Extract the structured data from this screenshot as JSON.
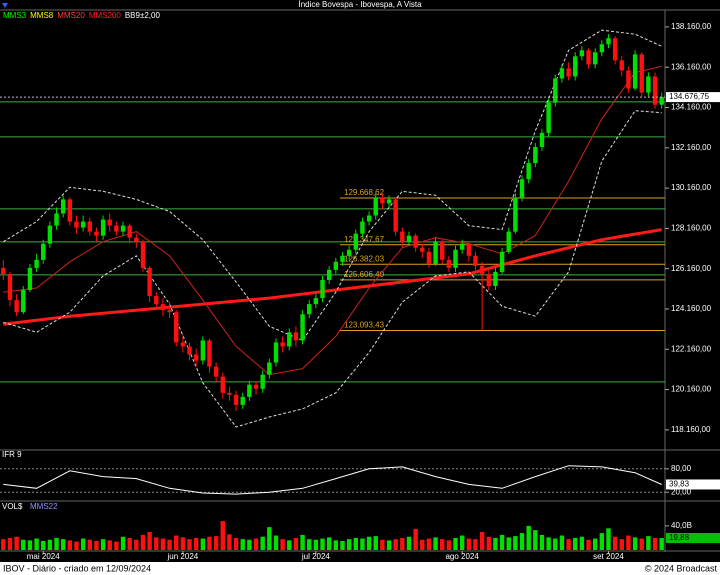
{
  "chart_data": [
    {
      "type": "candlestick",
      "title": "Índice Bovespa - Ibovespa, A Vista",
      "legend": [
        {
          "label": "MMS3",
          "color": "#00ff00"
        },
        {
          "label": "MMS8",
          "color": "#ffff00"
        },
        {
          "label": "MMS20",
          "color": "#ff4040"
        },
        {
          "label": "MMS200",
          "color": "#ff2020"
        },
        {
          "label": "BB9±2,00",
          "color": "#ffffff"
        }
      ],
      "up_color": "#00e000",
      "down_color": "#ff1010",
      "xlim": [
        -0.5,
        99.5
      ],
      "xticks": [
        {
          "value": 6,
          "label": "mai 2024"
        },
        {
          "value": 27,
          "label": "jun 2024"
        },
        {
          "value": 47,
          "label": "jul 2024"
        },
        {
          "value": 69,
          "label": "ago 2024"
        },
        {
          "value": 91,
          "label": "set 2024"
        }
      ],
      "ylim": [
        117160,
        139000
      ],
      "yticks": [
        {
          "value": 138160,
          "label": "138.160,00"
        },
        {
          "value": 136160,
          "label": "136.160,00"
        },
        {
          "value": 134160,
          "label": "134.160,00"
        },
        {
          "value": 132160,
          "label": "132.160,00"
        },
        {
          "value": 130160,
          "label": "130.160,00"
        },
        {
          "value": 128160,
          "label": "128.160,00"
        },
        {
          "value": 126160,
          "label": "126.160,00"
        },
        {
          "value": 124160,
          "label": "124.160,00"
        },
        {
          "value": 122160,
          "label": "122.160,00"
        },
        {
          "value": 120160,
          "label": "120.160,00"
        },
        {
          "value": 118160,
          "label": "118.160,00"
        }
      ],
      "open": [
        126200,
        125900,
        124600,
        124000,
        125100,
        126200,
        126600,
        127400,
        128300,
        128900,
        129600,
        128500,
        128200,
        128500,
        128000,
        127800,
        128600,
        128300,
        128000,
        128300,
        127700,
        127500,
        126200,
        124800,
        124400,
        124100,
        124000,
        122500,
        122300,
        121900,
        121600,
        122600,
        121300,
        120800,
        120000,
        119900,
        119400,
        119800,
        120400,
        120200,
        120900,
        121500,
        122500,
        122300,
        123000,
        122600,
        123900,
        124400,
        124700,
        125600,
        126100,
        126500,
        126800,
        127100,
        127900,
        128500,
        128800,
        129700,
        129400,
        129600,
        128000,
        127500,
        127800,
        127200,
        127000,
        126400,
        127500,
        126600,
        126200,
        127100,
        127400,
        126800,
        126300,
        125900,
        125300,
        126000,
        127000,
        128000,
        129700,
        130600,
        131400,
        132200,
        132900,
        134400,
        135600,
        136100,
        135700,
        136700,
        137000,
        136300,
        136900,
        137300,
        137600,
        136500,
        136000,
        135100,
        136800,
        134900,
        135700,
        134300
      ],
      "high": [
        126600,
        126000,
        124900,
        125300,
        126400,
        126900,
        127600,
        128500,
        129200,
        129800,
        129700,
        128800,
        128800,
        128700,
        128200,
        128800,
        128900,
        128500,
        128500,
        128400,
        127900,
        127600,
        126300,
        125000,
        124700,
        124500,
        124100,
        122900,
        122500,
        122200,
        122800,
        122700,
        121500,
        121000,
        120300,
        120100,
        120000,
        120600,
        120600,
        121100,
        121700,
        122700,
        122800,
        123200,
        123300,
        124100,
        124600,
        124900,
        125800,
        126300,
        126700,
        127000,
        127300,
        128100,
        128700,
        129000,
        129900,
        129900,
        129800,
        129700,
        128200,
        128000,
        127900,
        127400,
        127200,
        127700,
        127600,
        126800,
        127300,
        127600,
        127500,
        127000,
        126500,
        126100,
        126200,
        127200,
        128200,
        129900,
        130800,
        131600,
        132400,
        133100,
        134600,
        135800,
        136300,
        136400,
        136900,
        137200,
        137100,
        137100,
        137500,
        137800,
        137700,
        136700,
        136200,
        137000,
        136900,
        135900,
        135900,
        134900
      ],
      "low": [
        125600,
        124300,
        123800,
        123900,
        125000,
        126000,
        126400,
        127200,
        128100,
        128700,
        128300,
        127900,
        128000,
        127800,
        127500,
        127600,
        128000,
        127800,
        127800,
        127400,
        127200,
        126000,
        124500,
        124100,
        123800,
        123700,
        122300,
        122000,
        121600,
        121300,
        121400,
        121000,
        120500,
        119700,
        119600,
        119100,
        119200,
        119600,
        119900,
        120000,
        120700,
        121300,
        122000,
        122100,
        122300,
        122400,
        123700,
        124200,
        124500,
        125400,
        125900,
        126300,
        126600,
        126900,
        127700,
        128300,
        128600,
        129100,
        129200,
        127800,
        127200,
        127300,
        127000,
        126700,
        126200,
        126300,
        126400,
        126000,
        126000,
        126900,
        126500,
        126100,
        123100,
        125100,
        125100,
        125900,
        126900,
        127900,
        129500,
        130400,
        131200,
        132000,
        132700,
        134200,
        135400,
        135500,
        135500,
        136500,
        136100,
        136100,
        136700,
        137100,
        136300,
        135700,
        134900,
        135000,
        134700,
        134700,
        134100,
        134100
      ],
      "close": [
        125900,
        124600,
        124000,
        125100,
        126200,
        126600,
        127400,
        128300,
        128900,
        129600,
        128500,
        128200,
        128500,
        128000,
        127800,
        128600,
        128300,
        128000,
        128300,
        127700,
        127500,
        126200,
        124800,
        124400,
        124100,
        124000,
        122500,
        122300,
        121900,
        121600,
        122600,
        121300,
        120800,
        120000,
        119900,
        119400,
        119800,
        120400,
        120200,
        120900,
        121500,
        122500,
        122300,
        123000,
        122600,
        123900,
        124400,
        124700,
        125600,
        126100,
        126500,
        126800,
        127100,
        127900,
        128500,
        128800,
        129700,
        129400,
        129600,
        128000,
        127500,
        127800,
        127200,
        127000,
        126400,
        127500,
        126600,
        126200,
        127100,
        127400,
        126800,
        126300,
        125900,
        125300,
        126000,
        127000,
        128000,
        129700,
        130600,
        131400,
        132200,
        132900,
        134400,
        135600,
        136100,
        135700,
        136700,
        137000,
        136300,
        136900,
        137300,
        137600,
        136500,
        136000,
        135100,
        136800,
        134900,
        135700,
        134300,
        134676.75
      ],
      "last_price": {
        "value": 134676.75,
        "label": "134.676,75"
      },
      "level_color": "#3cb043",
      "levels": [
        134440,
        132700,
        129130,
        127490,
        125850,
        120540
      ],
      "labeled_level_color": "#e0a020",
      "labeled_levels": [
        {
          "value": 129668.62,
          "label": "129.668,62"
        },
        {
          "value": 127347.67,
          "label": "127.347,67"
        },
        {
          "value": 126382.03,
          "label": "126.382,03"
        },
        {
          "value": 125606.4,
          "label": "125.606,40"
        },
        {
          "value": 123093.43,
          "label": "123.093,43"
        }
      ],
      "series": [
        {
          "name": "MMS200",
          "color": "#ff1a1a",
          "width": 3,
          "x": [
            0,
            10,
            20,
            30,
            40,
            50,
            60,
            70,
            80,
            90,
            99
          ],
          "values": [
            123400,
            123800,
            124100,
            124400,
            124700,
            125100,
            125500,
            125900,
            126800,
            127600,
            128100
          ]
        },
        {
          "name": "MMS20",
          "color": "#d02020",
          "width": 1,
          "x": [
            0,
            5,
            10,
            15,
            20,
            25,
            30,
            35,
            40,
            45,
            50,
            55,
            60,
            65,
            70,
            75,
            80,
            85,
            90,
            95,
            99
          ],
          "values": [
            125000,
            125200,
            126500,
            127500,
            128000,
            126800,
            124600,
            122300,
            120900,
            121200,
            122800,
            125200,
            127200,
            127700,
            127400,
            126900,
            127800,
            130500,
            133600,
            135900,
            136200
          ]
        },
        {
          "name": "BB9±2,00",
          "color": "#dddddd",
          "width": 1,
          "dash": true,
          "x": [
            0,
            5,
            10,
            15,
            20,
            25,
            30,
            35,
            40,
            45,
            50,
            55,
            60,
            65,
            70,
            75,
            80,
            85,
            90,
            95,
            99
          ],
          "values": [
            127500,
            128500,
            130200,
            130000,
            129600,
            129000,
            127600,
            125500,
            123300,
            122600,
            125000,
            128000,
            130000,
            129800,
            128300,
            128100,
            133000,
            137000,
            138000,
            137800,
            137200
          ]
        },
        {
          "name": "BB9±2,00",
          "color": "#dddddd",
          "width": 1,
          "dash": true,
          "x": [
            0,
            5,
            10,
            15,
            20,
            25,
            30,
            35,
            40,
            45,
            50,
            55,
            60,
            65,
            70,
            75,
            80,
            85,
            90,
            95,
            99
          ],
          "values": [
            123500,
            123000,
            124000,
            125800,
            126800,
            124400,
            120500,
            118300,
            118800,
            119200,
            120000,
            122000,
            124500,
            125800,
            126000,
            124300,
            123800,
            126000,
            131500,
            134000,
            133900
          ]
        }
      ]
    },
    {
      "type": "line",
      "title": "IFR 9",
      "xlim": [
        -0.5,
        99.5
      ],
      "ylim": [
        0,
        100
      ],
      "yticks": [
        {
          "value": 80,
          "label": "80,00"
        },
        {
          "value": 20,
          "label": "20,00"
        }
      ],
      "series": [
        {
          "color": "#ffffff",
          "width": 1,
          "x": [
            0,
            5,
            10,
            15,
            20,
            25,
            30,
            35,
            40,
            45,
            50,
            55,
            60,
            65,
            70,
            75,
            80,
            85,
            90,
            95,
            99
          ],
          "values": [
            40,
            30,
            75,
            60,
            55,
            30,
            18,
            15,
            20,
            30,
            55,
            80,
            85,
            60,
            40,
            30,
            60,
            88,
            85,
            70,
            39.83
          ]
        }
      ],
      "last_value": {
        "value": 39.83,
        "label": "39,83"
      }
    },
    {
      "type": "bar",
      "title": "VOL$",
      "legend": [
        {
          "label": "MMS22",
          "color": "#9090ff"
        }
      ],
      "xlim": [
        -0.5,
        99.5
      ],
      "ylim": [
        0,
        78
      ],
      "yticks": [
        {
          "value": 40,
          "label": "40,0B"
        }
      ],
      "values": [
        18,
        20,
        22,
        17,
        16,
        19,
        15,
        17,
        20,
        18,
        16,
        14,
        19,
        17,
        15,
        18,
        16,
        14,
        22,
        20,
        17,
        25,
        30,
        21,
        19,
        17,
        24,
        21,
        18,
        20,
        19,
        22,
        23,
        48,
        26,
        20,
        18,
        17,
        19,
        22,
        38,
        24,
        18,
        16,
        20,
        25,
        18,
        17,
        19,
        21,
        16,
        15,
        18,
        20,
        19,
        22,
        23,
        17,
        16,
        18,
        20,
        22,
        35,
        17,
        19,
        21,
        18,
        16,
        20,
        24,
        19,
        18,
        30,
        22,
        20,
        25,
        21,
        23,
        28,
        40,
        33,
        25,
        21,
        19,
        24,
        18,
        20,
        22,
        17,
        19,
        28,
        36,
        22,
        18,
        24,
        21,
        19,
        23,
        20,
        19.88
      ],
      "last_value": {
        "value": 19.88,
        "label": "19,88"
      }
    }
  ],
  "footer": {
    "left": "IBOV - Diário - criado em 12/09/2024",
    "right": "© 2024 Broadcast"
  }
}
